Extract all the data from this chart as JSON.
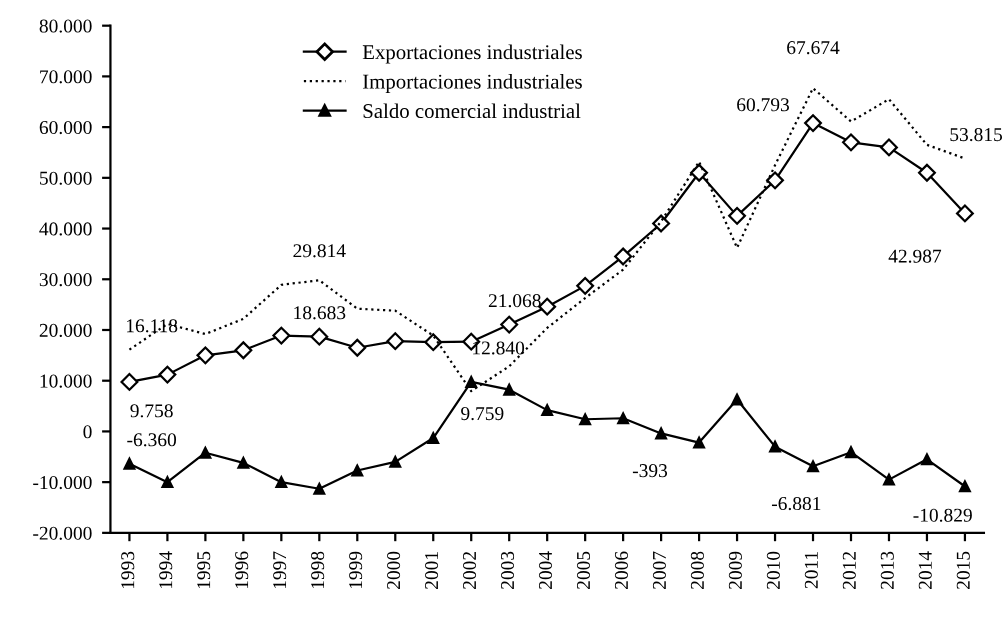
{
  "chart_data": {
    "type": "line",
    "categories": [
      "1993",
      "1994",
      "1995",
      "1996",
      "1997",
      "1998",
      "1999",
      "2000",
      "2001",
      "2002",
      "2003",
      "2004",
      "2005",
      "2006",
      "2007",
      "2008",
      "2009",
      "2010",
      "2011",
      "2012",
      "2013",
      "2014",
      "2015"
    ],
    "series": [
      {
        "name": "Exportaciones industriales",
        "color": "#000000",
        "marker": "diamond",
        "line_style": "solid",
        "values": [
          9758,
          11200,
          15000,
          16000,
          18900,
          18683,
          16500,
          17800,
          17600,
          17700,
          21068,
          24600,
          28700,
          34500,
          41000,
          51000,
          42500,
          49500,
          60793,
          57000,
          56000,
          51000,
          42987
        ]
      },
      {
        "name": "Importaciones industriales",
        "color": "#000000",
        "marker": "none",
        "line_style": "dotted",
        "values": [
          16118,
          21200,
          19200,
          22200,
          28900,
          29814,
          24200,
          23800,
          18900,
          7941,
          12840,
          20400,
          26300,
          31900,
          41400,
          53200,
          36200,
          52500,
          67674,
          61100,
          65500,
          56500,
          53815
        ]
      },
      {
        "name": "Saldo comercial industrial",
        "color": "#000000",
        "marker": "triangle",
        "line_style": "solid",
        "values": [
          -6360,
          -10000,
          -4200,
          -6200,
          -10000,
          -11300,
          -7700,
          -6000,
          -1300,
          9759,
          8228,
          4200,
          2400,
          2600,
          -393,
          -2200,
          6300,
          -3000,
          -6881,
          -4100,
          -9500,
          -5500,
          -10829
        ]
      }
    ],
    "ylim": [
      -20000,
      80000
    ],
    "yticks": [
      {
        "value": -20000,
        "label": "-20.000"
      },
      {
        "value": -10000,
        "label": "-10.000"
      },
      {
        "value": 0,
        "label": "0"
      },
      {
        "value": 10000,
        "label": "10.000"
      },
      {
        "value": 20000,
        "label": "20.000"
      },
      {
        "value": 30000,
        "label": "30.000"
      },
      {
        "value": 40000,
        "label": "40.000"
      },
      {
        "value": 50000,
        "label": "50.000"
      },
      {
        "value": 60000,
        "label": "60.000"
      },
      {
        "value": 70000,
        "label": "70.000"
      },
      {
        "value": 80000,
        "label": "80.000"
      }
    ],
    "annotations": [
      {
        "text": "16.118",
        "x": "1993",
        "y": 16118
      },
      {
        "text": "9.758",
        "x": "1993",
        "y": 9758
      },
      {
        "text": "-6.360",
        "x": "1993",
        "y": -6360
      },
      {
        "text": "29.814",
        "x": "1998",
        "y": 29814
      },
      {
        "text": "18.683",
        "x": "1998",
        "y": 18683
      },
      {
        "text": "21.068",
        "x": "2003",
        "y": 21068
      },
      {
        "text": "12.840",
        "x": "2003",
        "y": 12840
      },
      {
        "text": "9.759",
        "x": "2002",
        "y": 9759
      },
      {
        "text": "-393",
        "x": "2007",
        "y": -393
      },
      {
        "text": "60.793",
        "x": "2011",
        "y": 60793
      },
      {
        "text": "67.674",
        "x": "2011",
        "y": 67674
      },
      {
        "text": "-6.881",
        "x": "2011",
        "y": -6881
      },
      {
        "text": "53.815",
        "x": "2015",
        "y": 53815
      },
      {
        "text": "42.987",
        "x": "2015",
        "y": 42987
      },
      {
        "text": "-10.829",
        "x": "2015",
        "y": -10829
      }
    ],
    "grid": false,
    "legend": "top left"
  }
}
